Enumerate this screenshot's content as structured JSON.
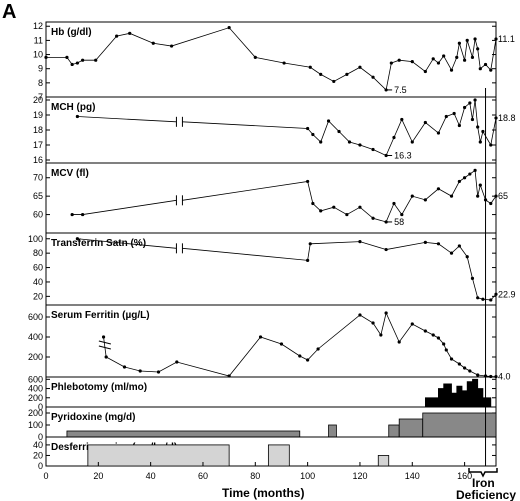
{
  "figure": {
    "panel_letter": "A",
    "x_axis_label": "Time   (months)",
    "annotation": {
      "line1": "Iron",
      "line2": "Deficiency"
    },
    "x_ticks": [
      "0",
      "20",
      "40",
      "60",
      "80",
      "100",
      "120",
      "140",
      "160"
    ]
  },
  "chart_data": {
    "type": "line",
    "x_range": [
      0,
      172
    ],
    "reference_line_x": 168,
    "panels": [
      {
        "id": "hb",
        "label": "Hb  (g/dl)",
        "type": "line",
        "ylim": [
          7,
          12.3
        ],
        "yticks": [
          "7",
          "8",
          "9",
          "10",
          "11",
          "12"
        ],
        "ytick_values": [
          7,
          8,
          9,
          10,
          11,
          12
        ],
        "min_annotation": {
          "x": 130,
          "y": 7.5,
          "label": "7.5"
        },
        "end_annotation": {
          "y": 11.1,
          "label": "11.1"
        },
        "x": [
          0,
          8,
          10,
          12,
          14,
          19,
          27,
          32,
          41,
          48,
          70,
          80,
          91,
          101,
          105,
          110,
          115,
          120,
          125,
          130,
          132,
          135,
          140,
          145,
          148,
          150,
          152,
          155,
          157,
          158,
          160,
          161,
          163,
          164,
          165,
          166,
          168,
          170,
          172
        ],
        "y": [
          9.8,
          9.8,
          9.3,
          9.4,
          9.6,
          9.6,
          11.3,
          11.5,
          10.8,
          10.6,
          11.9,
          9.8,
          9.4,
          9.1,
          8.6,
          8.1,
          8.6,
          9.1,
          8.4,
          7.5,
          9.4,
          9.6,
          9.5,
          8.8,
          9.7,
          9.4,
          9.9,
          8.9,
          9.8,
          10.8,
          9.6,
          11.0,
          9.8,
          11.1,
          10.4,
          9.0,
          9.3,
          8.9,
          11.1
        ]
      },
      {
        "id": "mch",
        "label": "MCH  (pg)",
        "type": "line",
        "axis_break_x": 51,
        "ylim": [
          15.8,
          20.2
        ],
        "yticks": [
          "16",
          "17",
          "18",
          "19",
          "20"
        ],
        "ytick_values": [
          16,
          17,
          18,
          19,
          20
        ],
        "min_annotation": {
          "x": 130,
          "y": 16.3,
          "label": "16.3"
        },
        "end_annotation": {
          "y": 18.8,
          "label": "18.8"
        },
        "x": [
          12,
          100,
          102,
          105,
          108,
          112,
          116,
          120,
          125,
          130,
          133,
          136,
          140,
          145,
          150,
          153,
          156,
          158,
          160,
          162,
          163,
          164,
          165,
          166,
          167,
          170,
          172
        ],
        "y": [
          18.9,
          18.1,
          17.7,
          17.2,
          18.6,
          17.9,
          17.2,
          17.0,
          16.7,
          16.3,
          17.5,
          18.7,
          17.2,
          18.5,
          17.8,
          18.9,
          19.1,
          18.3,
          19.5,
          19.8,
          18.7,
          20.0,
          18.2,
          17.2,
          17.9,
          17.0,
          18.8
        ]
      },
      {
        "id": "mcv",
        "label": "MCV  (fl)",
        "type": "line",
        "axis_break_x": 51,
        "ylim": [
          55,
          74
        ],
        "yticks": [
          "60",
          "65",
          "70"
        ],
        "ytick_values": [
          60,
          65,
          70
        ],
        "min_annotation": {
          "x": 130,
          "y": 58,
          "label": "58"
        },
        "end_annotation": {
          "y": 65,
          "label": "65"
        },
        "x": [
          10,
          14,
          100,
          102,
          105,
          110,
          115,
          120,
          125,
          130,
          133,
          136,
          140,
          145,
          150,
          155,
          158,
          160,
          162,
          164,
          165,
          166,
          168,
          170,
          172
        ],
        "y": [
          60.0,
          60.0,
          69.0,
          63.0,
          61.0,
          62.0,
          60.0,
          62.0,
          59.0,
          58.0,
          63.0,
          60.0,
          65.0,
          64.0,
          67.0,
          65.0,
          69.0,
          70.0,
          71.0,
          72.0,
          65.0,
          68.0,
          64.0,
          63.0,
          65.0
        ]
      },
      {
        "id": "tsat",
        "label": "Transferrin Satn  (%)",
        "type": "line",
        "axis_break_x": 51,
        "ylim": [
          8,
          108
        ],
        "yticks": [
          "20",
          "40",
          "60",
          "80",
          "100"
        ],
        "ytick_values": [
          20,
          40,
          60,
          80,
          100
        ],
        "end_annotation": {
          "y": 22.9,
          "label": "22.9"
        },
        "x": [
          12,
          100,
          101,
          120,
          130,
          145,
          150,
          155,
          158,
          161,
          163,
          165,
          167,
          170,
          172
        ],
        "y": [
          100,
          70,
          93,
          96,
          85,
          95,
          93,
          80,
          90,
          75,
          45,
          18,
          16,
          15,
          22.9
        ]
      },
      {
        "id": "ferritin",
        "label": "Serum Ferritin  (µg/L)",
        "type": "line",
        "ylim": [
          0,
          720
        ],
        "yticks": [
          "200",
          "400",
          "600"
        ],
        "ytick_values": [
          200,
          400,
          600
        ],
        "end_annotation": {
          "y": 4.0,
          "label": "4.0"
        },
        "x": [
          22,
          23,
          30,
          36,
          43,
          50,
          70,
          82,
          90,
          97,
          100,
          104,
          120,
          125,
          128,
          130,
          135,
          140,
          145,
          148,
          150,
          152,
          153,
          155,
          158,
          160,
          162,
          165,
          168,
          170,
          172
        ],
        "y": [
          400,
          200,
          100,
          60,
          50,
          150,
          10,
          400,
          330,
          210,
          170,
          280,
          620,
          540,
          420,
          640,
          350,
          530,
          460,
          420,
          390,
          330,
          270,
          180,
          130,
          90,
          60,
          20,
          10,
          5,
          4
        ]
      },
      {
        "id": "phleb",
        "label": "Phlebotomy  (ml/mo)",
        "type": "step-area",
        "ylim": [
          0,
          650
        ],
        "yticks": [
          "0",
          "200",
          "400",
          "600"
        ],
        "ytick_values": [
          0,
          200,
          400,
          600
        ],
        "steps": [
          [
            145,
            0
          ],
          [
            145,
            200
          ],
          [
            150,
            200
          ],
          [
            150,
            400
          ],
          [
            152,
            400
          ],
          [
            152,
            500
          ],
          [
            155,
            500
          ],
          [
            155,
            300
          ],
          [
            157,
            300
          ],
          [
            157,
            450
          ],
          [
            159,
            450
          ],
          [
            159,
            350
          ],
          [
            161,
            350
          ],
          [
            161,
            550
          ],
          [
            163,
            550
          ],
          [
            163,
            600
          ],
          [
            165,
            600
          ],
          [
            165,
            400
          ],
          [
            167,
            400
          ],
          [
            167,
            200
          ],
          [
            170,
            200
          ],
          [
            170,
            0
          ]
        ]
      },
      {
        "id": "pyridoxine",
        "label": "Pyridoxine  (mg/d)",
        "type": "step-area",
        "ylim": [
          0,
          250
        ],
        "yticks": [
          "0",
          "100",
          "200"
        ],
        "ytick_values": [
          0,
          100,
          200
        ],
        "blocks": [
          [
            8,
            97,
            50
          ],
          [
            108,
            111,
            100
          ],
          [
            131,
            135,
            100
          ],
          [
            135,
            144,
            150
          ],
          [
            144,
            172,
            200
          ]
        ]
      },
      {
        "id": "desferrioxamine",
        "label": "Desferrioxamine   (mg/kg/d)",
        "type": "step-area",
        "ylim": [
          0,
          55
        ],
        "yticks": [
          "0",
          "20",
          "40"
        ],
        "ytick_values": [
          0,
          20,
          40
        ],
        "blocks": [
          [
            16,
            70,
            40
          ],
          [
            85,
            93,
            40
          ],
          [
            127,
            131,
            20
          ]
        ]
      }
    ]
  }
}
